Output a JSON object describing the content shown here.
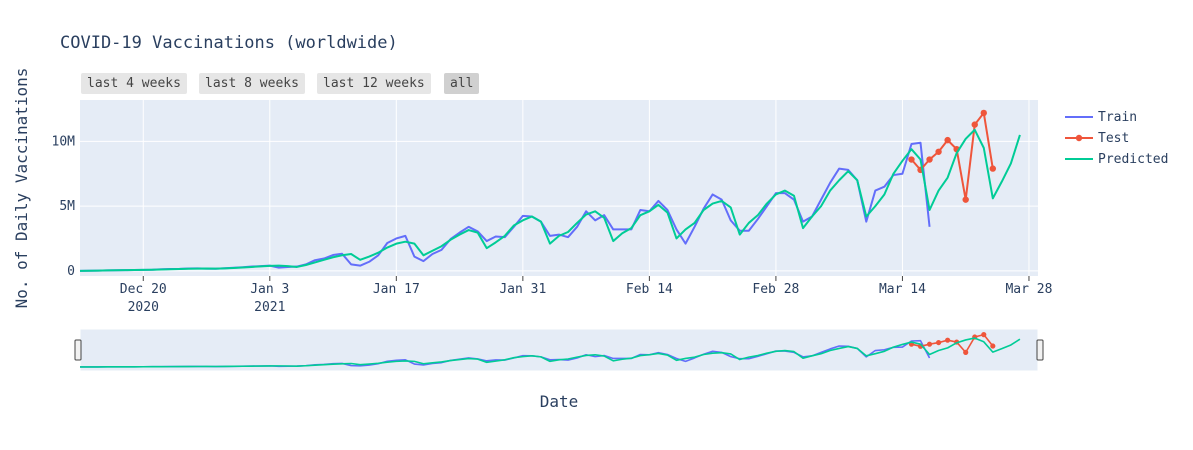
{
  "title": "COVID-19 Vaccinations (worldwide)",
  "range_buttons": [
    {
      "label": "last 4 weeks",
      "active": false
    },
    {
      "label": "last 8 weeks",
      "active": false
    },
    {
      "label": "last 12 weeks",
      "active": false
    },
    {
      "label": "all",
      "active": true
    }
  ],
  "colors": {
    "plot_bg": "#e5ecf6",
    "grid": "#ffffff",
    "train": "#636efa",
    "test": "#ef553b",
    "predicted": "#00cc96",
    "text": "#2a3f5f"
  },
  "chart_data": {
    "type": "line",
    "title": "COVID-19 Vaccinations (worldwide)",
    "xlabel": "Date",
    "ylabel": "No. of Daily Vaccinations",
    "x_axis_type": "date",
    "xlim": [
      "2020-12-13",
      "2021-03-29"
    ],
    "ylim": [
      -0.4,
      13.2
    ],
    "y_unit": "M",
    "x_ticks": [
      {
        "date": "2020-12-20",
        "label": "Dec 20",
        "sublabel": "2020"
      },
      {
        "date": "2021-01-03",
        "label": "Jan 3",
        "sublabel": "2021"
      },
      {
        "date": "2021-01-17",
        "label": "Jan 17",
        "sublabel": ""
      },
      {
        "date": "2021-01-31",
        "label": "Jan 31",
        "sublabel": ""
      },
      {
        "date": "2021-02-14",
        "label": "Feb 14",
        "sublabel": ""
      },
      {
        "date": "2021-02-28",
        "label": "Feb 28",
        "sublabel": ""
      },
      {
        "date": "2021-03-14",
        "label": "Mar 14",
        "sublabel": ""
      },
      {
        "date": "2021-03-28",
        "label": "Mar 28",
        "sublabel": ""
      }
    ],
    "y_ticks": [
      {
        "value": 0,
        "label": "0"
      },
      {
        "value": 5,
        "label": "5M"
      },
      {
        "value": 10,
        "label": "10M"
      }
    ],
    "grid": true,
    "legend_position": "right",
    "range_slider": true,
    "series": [
      {
        "name": "Train",
        "color": "#636efa",
        "mode": "lines",
        "start_date": "2020-12-13",
        "values": [
          0.0,
          0.01,
          0.02,
          0.03,
          0.04,
          0.05,
          0.06,
          0.07,
          0.08,
          0.12,
          0.14,
          0.15,
          0.18,
          0.19,
          0.17,
          0.16,
          0.2,
          0.24,
          0.28,
          0.33,
          0.36,
          0.4,
          0.25,
          0.3,
          0.33,
          0.5,
          0.82,
          0.95,
          1.22,
          1.32,
          0.5,
          0.4,
          0.7,
          1.2,
          2.15,
          2.5,
          2.7,
          1.1,
          0.75,
          1.3,
          1.62,
          2.45,
          2.95,
          3.4,
          3.05,
          2.3,
          2.65,
          2.6,
          3.4,
          4.25,
          4.2,
          3.8,
          2.7,
          2.8,
          2.6,
          3.4,
          4.6,
          3.9,
          4.3,
          3.2,
          3.2,
          3.2,
          4.7,
          4.6,
          5.4,
          4.7,
          3.2,
          2.1,
          3.4,
          4.8,
          5.9,
          5.5,
          3.9,
          3.1,
          3.1,
          4.0,
          5.0,
          6.0,
          6.0,
          5.5,
          3.8,
          4.2,
          5.5,
          6.8,
          7.9,
          7.8,
          7.0,
          3.8,
          6.2,
          6.5,
          7.4,
          7.5,
          9.8,
          9.9,
          3.4
        ]
      },
      {
        "name": "Test",
        "color": "#ef553b",
        "mode": "lines+markers",
        "start_date": "2021-03-15",
        "values": [
          8.6,
          7.8,
          8.6,
          9.2,
          10.1,
          9.4,
          5.5,
          11.3,
          12.2,
          7.9
        ]
      },
      {
        "name": "Predicted",
        "color": "#00cc96",
        "mode": "lines",
        "start_date": "2020-12-13",
        "values": [
          0.0,
          0.01,
          0.02,
          0.03,
          0.04,
          0.05,
          0.06,
          0.07,
          0.08,
          0.1,
          0.12,
          0.14,
          0.16,
          0.17,
          0.18,
          0.17,
          0.19,
          0.22,
          0.26,
          0.3,
          0.34,
          0.38,
          0.4,
          0.36,
          0.3,
          0.45,
          0.65,
          0.85,
          1.05,
          1.2,
          1.3,
          0.85,
          1.1,
          1.4,
          1.8,
          2.1,
          2.25,
          2.1,
          1.2,
          1.55,
          1.9,
          2.4,
          2.8,
          3.15,
          2.95,
          1.75,
          2.2,
          2.7,
          3.5,
          3.9,
          4.2,
          3.8,
          2.1,
          2.7,
          3.0,
          3.7,
          4.35,
          4.6,
          4.1,
          2.3,
          2.9,
          3.3,
          4.3,
          4.6,
          5.1,
          4.5,
          2.5,
          3.2,
          3.7,
          4.7,
          5.2,
          5.4,
          4.9,
          2.8,
          3.7,
          4.3,
          5.2,
          5.9,
          6.2,
          5.8,
          3.3,
          4.2,
          5.0,
          6.2,
          7.0,
          7.7,
          7.0,
          4.2,
          5.0,
          5.9,
          7.5,
          8.5,
          9.4,
          8.6,
          4.7,
          6.2,
          7.2,
          9.1,
          10.2,
          10.9,
          9.5,
          5.6,
          6.9,
          8.3,
          10.5
        ]
      }
    ]
  }
}
